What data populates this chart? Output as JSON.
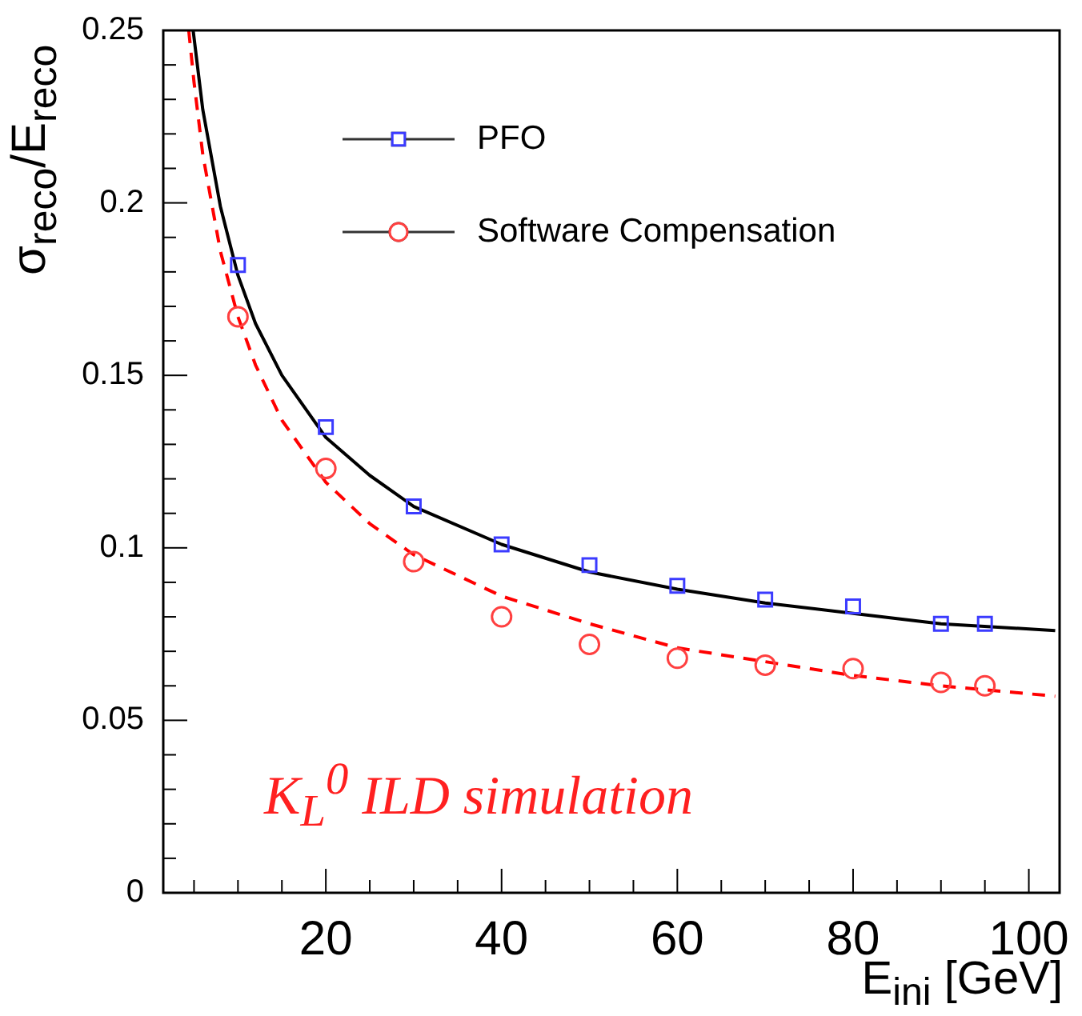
{
  "chart_data": {
    "type": "scatter",
    "xlabel": "E$_{ini}$ [GeV]",
    "ylabel": "σ$_{reco}$/E$_{reco}$",
    "annotations": [
      "K$_{L}$$^{0}$ ILD simulation"
    ],
    "xlim": [
      1.5,
      103.5
    ],
    "xticks": [
      {
        "value": 5,
        "label": null
      },
      {
        "value": 10,
        "label": null
      },
      {
        "value": 15,
        "label": null
      },
      20,
      {
        "value": 25,
        "label": null
      },
      {
        "value": 30,
        "label": null
      },
      {
        "value": 35,
        "label": null
      },
      40,
      {
        "value": 45,
        "label": null
      },
      {
        "value": 50,
        "label": null
      },
      {
        "value": 55,
        "label": null
      },
      60,
      {
        "value": 65,
        "label": null
      },
      {
        "value": 70,
        "label": null
      },
      {
        "value": 75,
        "label": null
      },
      80,
      {
        "value": 85,
        "label": null
      },
      {
        "value": 90,
        "label": null
      },
      {
        "value": 95,
        "label": null
      },
      100
    ],
    "ylim": [
      0,
      0.25
    ],
    "yticks": [
      0,
      {
        "value": 0.01,
        "label": null
      },
      {
        "value": 0.02,
        "label": null
      },
      {
        "value": 0.03,
        "label": null
      },
      {
        "value": 0.04,
        "label": null
      },
      0.05,
      {
        "value": 0.06,
        "label": null
      },
      {
        "value": 0.07,
        "label": null
      },
      {
        "value": 0.08,
        "label": null
      },
      {
        "value": 0.09,
        "label": null
      },
      0.1,
      {
        "value": 0.11,
        "label": null
      },
      {
        "value": 0.12,
        "label": null
      },
      {
        "value": 0.13,
        "label": null
      },
      {
        "value": 0.14,
        "label": null
      },
      0.15,
      {
        "value": 0.16,
        "label": null
      },
      {
        "value": 0.17,
        "label": null
      },
      {
        "value": 0.18,
        "label": null
      },
      {
        "value": 0.19,
        "label": null
      },
      0.2,
      {
        "value": 0.21,
        "label": null
      },
      {
        "value": 0.22,
        "label": null
      },
      {
        "value": 0.23,
        "label": null
      },
      {
        "value": 0.24,
        "label": null
      },
      0.25
    ],
    "grid": false,
    "legend": "top",
    "series": [
      {
        "name": "PFO",
        "type": "scatter",
        "marker": "square",
        "color": "#3b3bff",
        "x": [
          10,
          20,
          30,
          40,
          50,
          60,
          70,
          80,
          90,
          95
        ],
        "values": [
          0.182,
          0.135,
          0.112,
          0.101,
          0.095,
          0.089,
          0.085,
          0.083,
          0.078,
          0.078
        ]
      },
      {
        "name": "Software Compensation",
        "type": "scatter",
        "marker": "circle",
        "color": "#ff4040",
        "x": [
          10,
          20,
          30,
          40,
          50,
          60,
          70,
          80,
          90,
          95
        ],
        "values": [
          0.167,
          0.123,
          0.096,
          0.08,
          0.072,
          0.068,
          0.066,
          0.065,
          0.061,
          0.06
        ]
      },
      {
        "type": "line",
        "marker": "none",
        "line_style": "solid",
        "color": "#000000",
        "x": [
          4.9,
          6,
          8,
          10,
          12,
          15,
          20,
          25,
          30,
          40,
          50,
          60,
          70,
          80,
          90,
          103
        ],
        "values": [
          0.25,
          0.227,
          0.199,
          0.179,
          0.165,
          0.15,
          0.132,
          0.121,
          0.112,
          0.101,
          0.093,
          0.088,
          0.084,
          0.081,
          0.078,
          0.076
        ]
      },
      {
        "type": "line",
        "marker": "none",
        "line_style": "dashed",
        "color": "#ff0000",
        "x": [
          4.4,
          5,
          6,
          8,
          10,
          12,
          15,
          20,
          25,
          30,
          40,
          50,
          60,
          70,
          80,
          90,
          103
        ],
        "values": [
          0.25,
          0.235,
          0.214,
          0.186,
          0.167,
          0.153,
          0.137,
          0.119,
          0.107,
          0.098,
          0.086,
          0.078,
          0.071,
          0.067,
          0.063,
          0.06,
          0.057
        ]
      }
    ]
  }
}
